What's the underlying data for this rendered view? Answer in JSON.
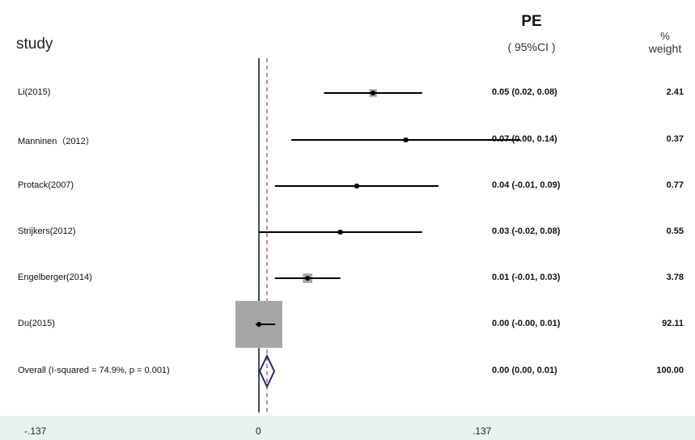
{
  "header": {
    "study": "study",
    "effect": "PE",
    "ci": "( 95%CI )",
    "weight_pct": "%",
    "weight": "weight"
  },
  "chart_data": {
    "type": "forest",
    "studies": [
      {
        "label": "Li(2015)",
        "est": 0.05,
        "lo": 0.02,
        "hi": 0.08,
        "est_text": "0.05 (0.02, 0.08)",
        "weight": "2.41"
      },
      {
        "label": "Manninen（2012）",
        "est": 0.07,
        "lo": 0.0,
        "hi": 0.14,
        "est_text": "0.07 (0.00, 0.14)",
        "weight": "0.37"
      },
      {
        "label": "Protack(2007)",
        "est": 0.04,
        "lo": -0.01,
        "hi": 0.09,
        "est_text": "0.04 (-0.01, 0.09)",
        "weight": "0.77"
      },
      {
        "label": "Strijkers(2012)",
        "est": 0.03,
        "lo": -0.02,
        "hi": 0.08,
        "est_text": "0.03 (-0.02, 0.08)",
        "weight": "0.55"
      },
      {
        "label": "Engelberger(2014)",
        "est": 0.01,
        "lo": -0.01,
        "hi": 0.03,
        "est_text": "0.01 (-0.01, 0.03)",
        "weight": "3.78"
      },
      {
        "label": "Du(2015)",
        "est": 0.0,
        "lo": -0.002,
        "hi": 0.01,
        "est_text": "0.00 (-0.00, 0.01)",
        "weight": "92.11"
      }
    ],
    "overall": {
      "label": "Overall  (I-squared = 74.9%, p = 0.001)",
      "est": 0.0,
      "lo": 0.0,
      "hi": 0.01,
      "est_text": "0.00 (0.00, 0.01)",
      "weight": "100.00"
    },
    "x_ticks": [
      "-.137",
      "0",
      ".137"
    ],
    "x_tick_values": [
      -0.137,
      0,
      0.137
    ],
    "xlim": [
      -0.16,
      0.137
    ],
    "null_line": 0,
    "colors": {
      "ci_line": "#000000",
      "weight_box": "#a6a6a6",
      "diamond": "#1a2a8c",
      "overall_line": "#c0392b",
      "axis_band": "#e9f1f1"
    }
  }
}
